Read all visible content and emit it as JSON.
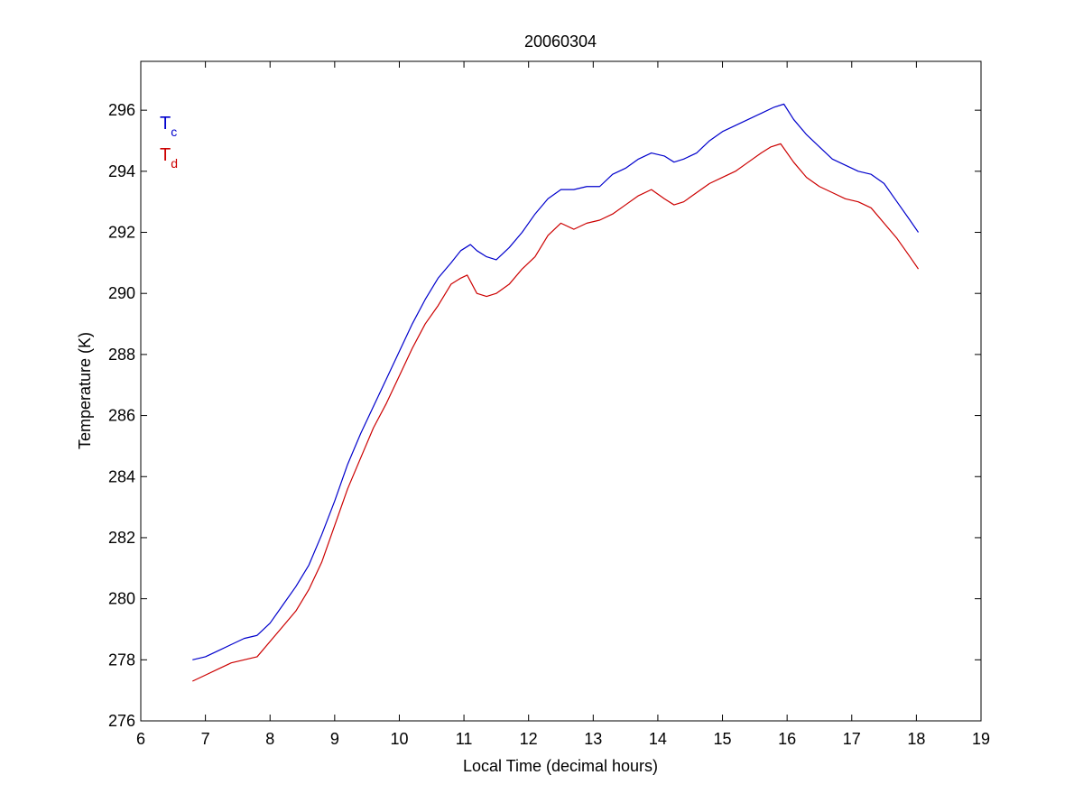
{
  "chart_data": {
    "type": "line",
    "title": "20060304",
    "xlabel": "Local Time (decimal hours)",
    "ylabel": "Temperature (K)",
    "xlim": [
      6,
      19
    ],
    "ylim": [
      276,
      297.6
    ],
    "xticks": [
      6,
      7,
      8,
      9,
      10,
      11,
      12,
      13,
      14,
      15,
      16,
      17,
      18,
      19
    ],
    "yticks": [
      276,
      278,
      280,
      282,
      284,
      286,
      288,
      290,
      292,
      294,
      296
    ],
    "xtick_labels": [
      "6",
      "7",
      "8",
      "9",
      "10",
      "11",
      "12",
      "13",
      "14",
      "15",
      "16",
      "17",
      "18",
      "19"
    ],
    "ytick_labels": [
      "276",
      "278",
      "280",
      "282",
      "284",
      "286",
      "288",
      "290",
      "292",
      "294",
      "296"
    ],
    "grid": false,
    "legend_position": "top-left",
    "series": [
      {
        "name": "T",
        "subscript": "c",
        "color": "#0000cc",
        "x": [
          6.8,
          7.0,
          7.2,
          7.4,
          7.6,
          7.8,
          8.0,
          8.2,
          8.4,
          8.6,
          8.8,
          9.0,
          9.2,
          9.4,
          9.6,
          9.8,
          10.0,
          10.2,
          10.4,
          10.6,
          10.8,
          10.95,
          11.1,
          11.2,
          11.35,
          11.5,
          11.7,
          11.9,
          12.1,
          12.3,
          12.5,
          12.7,
          12.9,
          13.1,
          13.3,
          13.5,
          13.7,
          13.9,
          14.1,
          14.25,
          14.4,
          14.6,
          14.8,
          15.0,
          15.2,
          15.4,
          15.6,
          15.8,
          15.95,
          16.1,
          16.3,
          16.5,
          16.7,
          16.9,
          17.1,
          17.3,
          17.5,
          17.7,
          17.9,
          18.03
        ],
        "values": [
          278.0,
          278.1,
          278.3,
          278.5,
          278.7,
          278.8,
          279.2,
          279.8,
          280.4,
          281.1,
          282.1,
          283.2,
          284.4,
          285.4,
          286.3,
          287.2,
          288.1,
          289.0,
          289.8,
          290.5,
          291.0,
          291.4,
          291.6,
          291.4,
          291.2,
          291.1,
          291.5,
          292.0,
          292.6,
          293.1,
          293.4,
          293.4,
          293.5,
          293.5,
          293.9,
          294.1,
          294.4,
          294.6,
          294.5,
          294.3,
          294.4,
          294.6,
          295.0,
          295.3,
          295.5,
          295.7,
          295.9,
          296.1,
          296.2,
          295.7,
          295.2,
          294.8,
          294.4,
          294.2,
          294.0,
          293.9,
          293.6,
          293.0,
          292.4,
          292.0
        ]
      },
      {
        "name": "T",
        "subscript": "d",
        "color": "#cc0000",
        "x": [
          6.8,
          7.0,
          7.2,
          7.4,
          7.6,
          7.8,
          8.0,
          8.2,
          8.4,
          8.6,
          8.8,
          9.0,
          9.2,
          9.4,
          9.6,
          9.8,
          10.0,
          10.2,
          10.4,
          10.6,
          10.8,
          10.95,
          11.05,
          11.2,
          11.35,
          11.5,
          11.7,
          11.9,
          12.1,
          12.3,
          12.5,
          12.7,
          12.9,
          13.1,
          13.3,
          13.5,
          13.7,
          13.9,
          14.1,
          14.25,
          14.4,
          14.6,
          14.8,
          15.0,
          15.2,
          15.4,
          15.6,
          15.75,
          15.9,
          16.1,
          16.3,
          16.5,
          16.7,
          16.9,
          17.1,
          17.3,
          17.5,
          17.7,
          17.9,
          18.03
        ],
        "values": [
          277.3,
          277.5,
          277.7,
          277.9,
          278.0,
          278.1,
          278.6,
          279.1,
          279.6,
          280.3,
          281.2,
          282.4,
          283.6,
          284.6,
          285.6,
          286.4,
          287.3,
          288.2,
          289.0,
          289.6,
          290.3,
          290.5,
          290.6,
          290.0,
          289.9,
          290.0,
          290.3,
          290.8,
          291.2,
          291.9,
          292.3,
          292.1,
          292.3,
          292.4,
          292.6,
          292.9,
          293.2,
          293.4,
          293.1,
          292.9,
          293.0,
          293.3,
          293.6,
          293.8,
          294.0,
          294.3,
          294.6,
          294.8,
          294.9,
          294.3,
          293.8,
          293.5,
          293.3,
          293.1,
          293.0,
          292.8,
          292.3,
          291.8,
          291.2,
          290.8
        ]
      }
    ]
  }
}
